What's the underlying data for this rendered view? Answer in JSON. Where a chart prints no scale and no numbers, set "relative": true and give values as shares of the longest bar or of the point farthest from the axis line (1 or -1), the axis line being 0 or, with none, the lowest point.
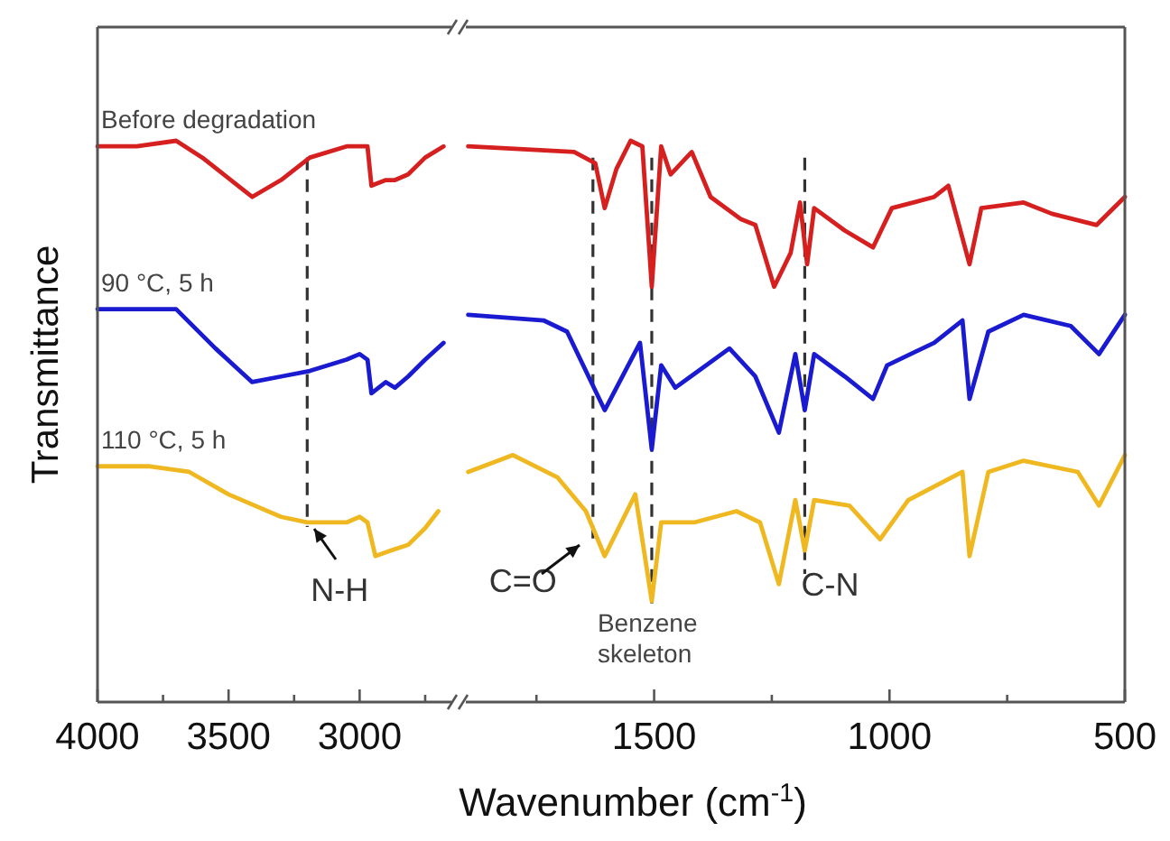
{
  "chart_data": [
    {
      "type": "line",
      "relative": true,
      "ylabel": "Transmittance",
      "xlabel": "Wavenumber (cm$^{-1}$)",
      "tick_labels": "x",
      "grid": false,
      "line_style": "solid",
      "xlim": [
        4000,
        2650
      ],
      "xticks": [
        4000,
        3500,
        3000,
        {
          "value": 3750,
          "label": null
        },
        {
          "value": 3250,
          "label": null
        },
        {
          "value": 2750,
          "label": null
        }
      ],
      "series": [
        {
          "name": "Before degradation",
          "color": "#d62020",
          "x": [
            4000,
            3850,
            3700,
            3600,
            3410,
            3300,
            3190,
            3050,
            3000,
            2970,
            2955,
            2900,
            2865,
            2815,
            2750,
            2680
          ],
          "values": [
            0.99,
            0.99,
            1,
            0.97,
            0.9,
            0.93,
            0.97,
            0.99,
            0.99,
            0.99,
            0.92,
            0.93,
            0.93,
            0.94,
            0.97,
            0.99
          ]
        },
        {
          "name": "90 °C, 5 h",
          "color": "#1a1ad0",
          "x": [
            4000,
            3700,
            3550,
            3410,
            3300,
            3190,
            3050,
            3000,
            2970,
            2955,
            2900,
            2865,
            2815,
            2750,
            2680
          ],
          "values": [
            0.7,
            0.7,
            0.63,
            0.57,
            0.58,
            0.59,
            0.61,
            0.62,
            0.61,
            0.55,
            0.57,
            0.56,
            0.58,
            0.61,
            0.64
          ]
        },
        {
          "name": "110 °C, 5 h",
          "color": "#f0b820",
          "x": [
            4000,
            3800,
            3650,
            3500,
            3300,
            3200,
            3050,
            3000,
            2970,
            2940,
            2880,
            2815,
            2750,
            2700
          ],
          "values": [
            0.42,
            0.42,
            0.41,
            0.37,
            0.33,
            0.32,
            0.32,
            0.33,
            0.32,
            0.26,
            0.27,
            0.28,
            0.31,
            0.34
          ]
        }
      ],
      "ref_lines": [
        {
          "axis": "x",
          "value": 3200,
          "label": "N-H",
          "color": "#333333",
          "line_style": "dashed"
        }
      ]
    },
    {
      "type": "line",
      "relative": true,
      "tick_labels": "x",
      "grid": false,
      "line_style": "solid",
      "xlim": [
        1900,
        500
      ],
      "xticks": [
        1500,
        1000,
        500,
        {
          "value": 1750,
          "label": null
        },
        {
          "value": 1250,
          "label": null
        },
        {
          "value": 750,
          "label": null
        }
      ],
      "series": [
        {
          "color": "#d62020",
          "x": [
            1895,
            1670,
            1625,
            1605,
            1580,
            1550,
            1525,
            1505,
            1485,
            1465,
            1420,
            1380,
            1315,
            1285,
            1245,
            1210,
            1190,
            1175,
            1160,
            1095,
            1035,
            995,
            905,
            875,
            830,
            805,
            715,
            655,
            560,
            500
          ],
          "values": [
            0.99,
            0.98,
            0.96,
            0.88,
            0.95,
            1,
            0.99,
            0.74,
            0.99,
            0.94,
            0.98,
            0.9,
            0.86,
            0.85,
            0.74,
            0.8,
            0.89,
            0.78,
            0.88,
            0.84,
            0.81,
            0.88,
            0.9,
            0.92,
            0.78,
            0.88,
            0.89,
            0.87,
            0.85,
            0.9
          ]
        },
        {
          "color": "#1a1ad0",
          "x": [
            1895,
            1735,
            1685,
            1605,
            1530,
            1505,
            1485,
            1455,
            1340,
            1285,
            1235,
            1200,
            1180,
            1160,
            1095,
            1035,
            1005,
            905,
            845,
            830,
            790,
            715,
            615,
            555,
            500
          ],
          "values": [
            0.69,
            0.68,
            0.66,
            0.52,
            0.64,
            0.45,
            0.6,
            0.56,
            0.63,
            0.58,
            0.48,
            0.62,
            0.52,
            0.62,
            0.58,
            0.54,
            0.6,
            0.64,
            0.68,
            0.54,
            0.66,
            0.69,
            0.67,
            0.62,
            0.69
          ]
        },
        {
          "color": "#f0b820",
          "x": [
            1895,
            1800,
            1705,
            1645,
            1605,
            1540,
            1505,
            1485,
            1415,
            1325,
            1275,
            1235,
            1200,
            1180,
            1160,
            1085,
            1020,
            960,
            845,
            830,
            790,
            715,
            600,
            555,
            500
          ],
          "values": [
            0.41,
            0.44,
            0.4,
            0.34,
            0.26,
            0.37,
            0.18,
            0.32,
            0.32,
            0.34,
            0.32,
            0.21,
            0.36,
            0.27,
            0.36,
            0.35,
            0.29,
            0.36,
            0.41,
            0.26,
            0.41,
            0.43,
            0.41,
            0.35,
            0.44
          ]
        }
      ],
      "ref_lines": [
        {
          "axis": "x",
          "value": 1630,
          "label": "C=O",
          "color": "#333333",
          "line_style": "dashed"
        },
        {
          "axis": "x",
          "value": 1505,
          "label": "Benzene skeleton",
          "color": "#333333",
          "line_style": "dashed"
        },
        {
          "axis": "x",
          "value": 1180,
          "label": "C-N",
          "color": "#333333",
          "line_style": "dashed"
        }
      ]
    }
  ]
}
